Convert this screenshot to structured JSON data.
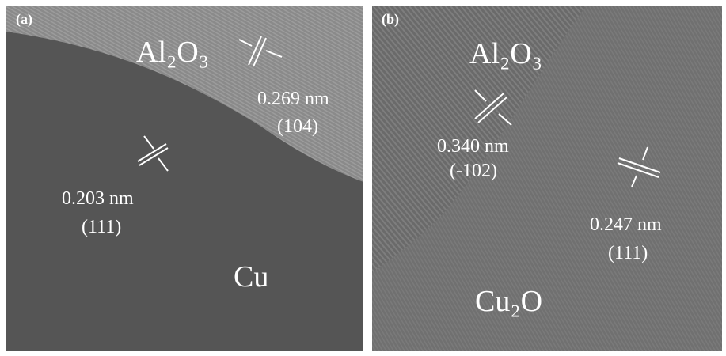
{
  "panels": [
    {
      "label": "(a)",
      "phases": [
        "Al₂O₃",
        "Cu"
      ],
      "spacings": [
        {
          "distance": "0.269 nm",
          "plane": "(104)"
        },
        {
          "distance": "0.203 nm",
          "plane": "(111)"
        }
      ]
    },
    {
      "label": "(b)",
      "phases": [
        "Al₂O₃",
        "Cu₂O"
      ],
      "spacings": [
        {
          "distance": "0.340 nm",
          "plane": "(-102)"
        },
        {
          "distance": "0.247 nm",
          "plane": "(111)"
        }
      ]
    }
  ]
}
